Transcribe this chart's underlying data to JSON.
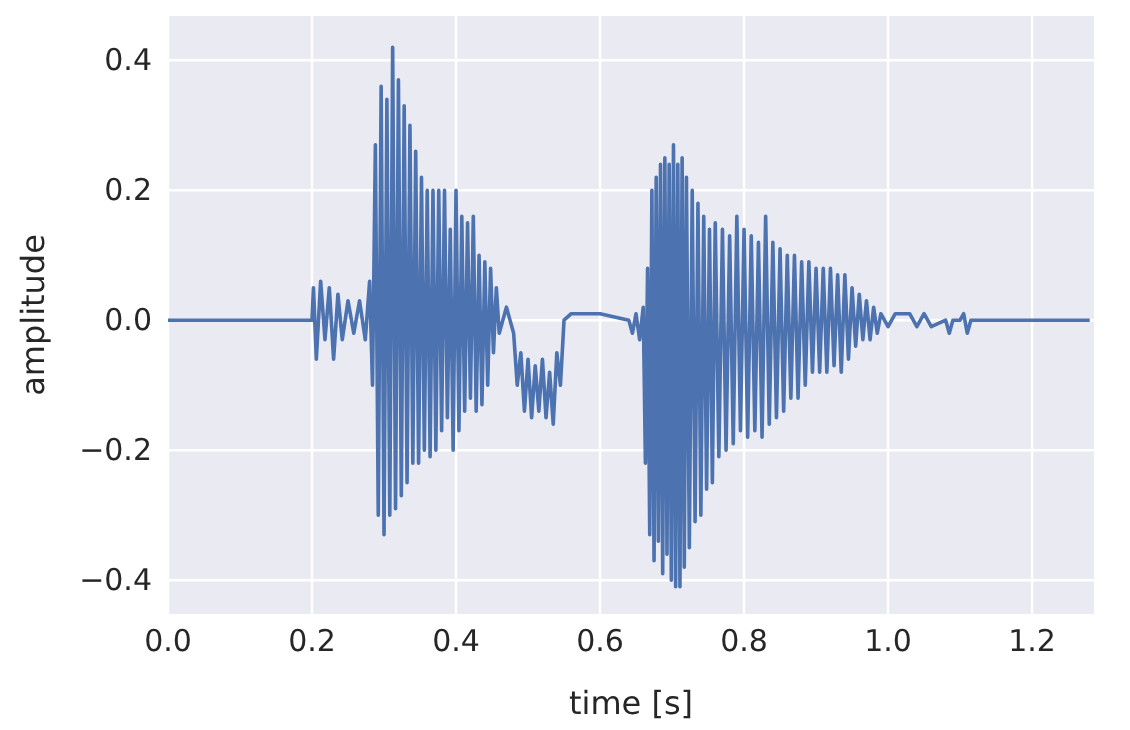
{
  "chart_data": {
    "type": "line",
    "xlabel": "time [s]",
    "ylabel": "amplitude",
    "x": [
      0,
      0.2,
      0.202,
      0.206,
      0.212,
      0.218,
      0.224,
      0.23,
      0.236,
      0.242,
      0.25,
      0.258,
      0.266,
      0.274,
      0.28,
      0.284,
      0.288,
      0.292,
      0.296,
      0.3,
      0.304,
      0.308,
      0.312,
      0.316,
      0.32,
      0.324,
      0.328,
      0.332,
      0.336,
      0.34,
      0.344,
      0.348,
      0.352,
      0.356,
      0.36,
      0.364,
      0.368,
      0.372,
      0.376,
      0.38,
      0.384,
      0.388,
      0.392,
      0.396,
      0.4,
      0.404,
      0.408,
      0.412,
      0.416,
      0.42,
      0.424,
      0.428,
      0.432,
      0.436,
      0.44,
      0.444,
      0.448,
      0.452,
      0.456,
      0.46,
      0.47,
      0.48,
      0.485,
      0.49,
      0.495,
      0.5,
      0.505,
      0.51,
      0.515,
      0.52,
      0.525,
      0.53,
      0.535,
      0.54,
      0.545,
      0.55,
      0.56,
      0.6,
      0.64,
      0.645,
      0.65,
      0.655,
      0.66,
      0.663,
      0.666,
      0.669,
      0.672,
      0.675,
      0.678,
      0.681,
      0.684,
      0.687,
      0.69,
      0.693,
      0.696,
      0.699,
      0.702,
      0.705,
      0.708,
      0.711,
      0.714,
      0.717,
      0.72,
      0.724,
      0.728,
      0.732,
      0.736,
      0.74,
      0.744,
      0.748,
      0.752,
      0.756,
      0.76,
      0.765,
      0.77,
      0.775,
      0.78,
      0.785,
      0.79,
      0.795,
      0.8,
      0.805,
      0.81,
      0.815,
      0.82,
      0.825,
      0.83,
      0.835,
      0.84,
      0.845,
      0.85,
      0.855,
      0.86,
      0.865,
      0.87,
      0.875,
      0.88,
      0.885,
      0.89,
      0.895,
      0.9,
      0.905,
      0.91,
      0.915,
      0.92,
      0.925,
      0.93,
      0.935,
      0.94,
      0.945,
      0.95,
      0.955,
      0.96,
      0.965,
      0.97,
      0.975,
      0.98,
      0.985,
      0.99,
      1.0,
      1.01,
      1.03,
      1.04,
      1.05,
      1.06,
      1.08,
      1.085,
      1.09,
      1.1,
      1.105,
      1.11,
      1.115,
      1.28
    ],
    "values": [
      0,
      0,
      0.05,
      -0.06,
      0.06,
      -0.03,
      0.05,
      -0.06,
      0.04,
      -0.03,
      0.03,
      -0.02,
      0.03,
      -0.03,
      0.06,
      -0.1,
      0.27,
      -0.3,
      0.36,
      -0.33,
      0.34,
      -0.3,
      0.42,
      -0.29,
      0.37,
      -0.27,
      0.33,
      -0.25,
      0.3,
      -0.22,
      0.26,
      -0.22,
      0.22,
      -0.2,
      0.2,
      -0.21,
      0.2,
      -0.2,
      0.2,
      -0.17,
      0.2,
      -0.15,
      0.14,
      -0.2,
      0.2,
      -0.17,
      0.16,
      -0.14,
      0.15,
      -0.12,
      0.16,
      -0.14,
      0.1,
      -0.13,
      0.09,
      -0.1,
      0.08,
      -0.05,
      0.05,
      -0.02,
      0.02,
      -0.02,
      -0.1,
      -0.05,
      -0.14,
      -0.06,
      -0.15,
      -0.07,
      -0.14,
      -0.06,
      -0.15,
      -0.08,
      -0.16,
      -0.05,
      -0.1,
      0,
      0.01,
      0.01,
      0,
      -0.02,
      0.01,
      -0.03,
      0.02,
      -0.22,
      0.08,
      -0.33,
      0.2,
      -0.37,
      0.22,
      -0.34,
      0.24,
      -0.39,
      0.25,
      -0.36,
      0.24,
      -0.4,
      0.27,
      -0.41,
      0.24,
      -0.41,
      0.25,
      -0.38,
      0.22,
      -0.35,
      0.2,
      -0.31,
      0.18,
      -0.3,
      0.16,
      -0.26,
      0.14,
      -0.25,
      0.15,
      -0.21,
      0.14,
      -0.2,
      0.13,
      -0.19,
      0.16,
      -0.17,
      0.14,
      -0.18,
      0.13,
      -0.17,
      0.12,
      -0.18,
      0.16,
      -0.16,
      0.12,
      -0.15,
      0.11,
      -0.14,
      0.1,
      -0.12,
      0.1,
      -0.12,
      0.09,
      -0.1,
      0.09,
      -0.08,
      0.08,
      -0.08,
      0.08,
      -0.08,
      0.08,
      -0.07,
      0.07,
      -0.08,
      0.07,
      -0.06,
      0.05,
      -0.04,
      0.04,
      -0.03,
      0.03,
      -0.03,
      0.02,
      -0.02,
      0.01,
      -0.01,
      0.01,
      0.01,
      -0.01,
      0.01,
      -0.01,
      0,
      -0.02,
      0,
      0,
      0.01,
      -0.02,
      0,
      0
    ],
    "color": "#4c72b0",
    "xlim": [
      0,
      1.286
    ],
    "xticks": [
      {
        "value": 0,
        "label": "0.0"
      },
      0.2,
      0.4,
      0.6,
      0.8,
      {
        "value": 1,
        "label": "1.0"
      },
      1.2
    ],
    "ylim": [
      -0.452,
      0.468
    ],
    "yticks": [
      {
        "value": -0.4,
        "label": "−0.4"
      },
      {
        "value": -0.2,
        "label": "−0.2"
      },
      {
        "value": 0,
        "label": "0.0"
      },
      0.2,
      0.4
    ],
    "grid": true,
    "line_style": "solid",
    "marker": "none"
  }
}
